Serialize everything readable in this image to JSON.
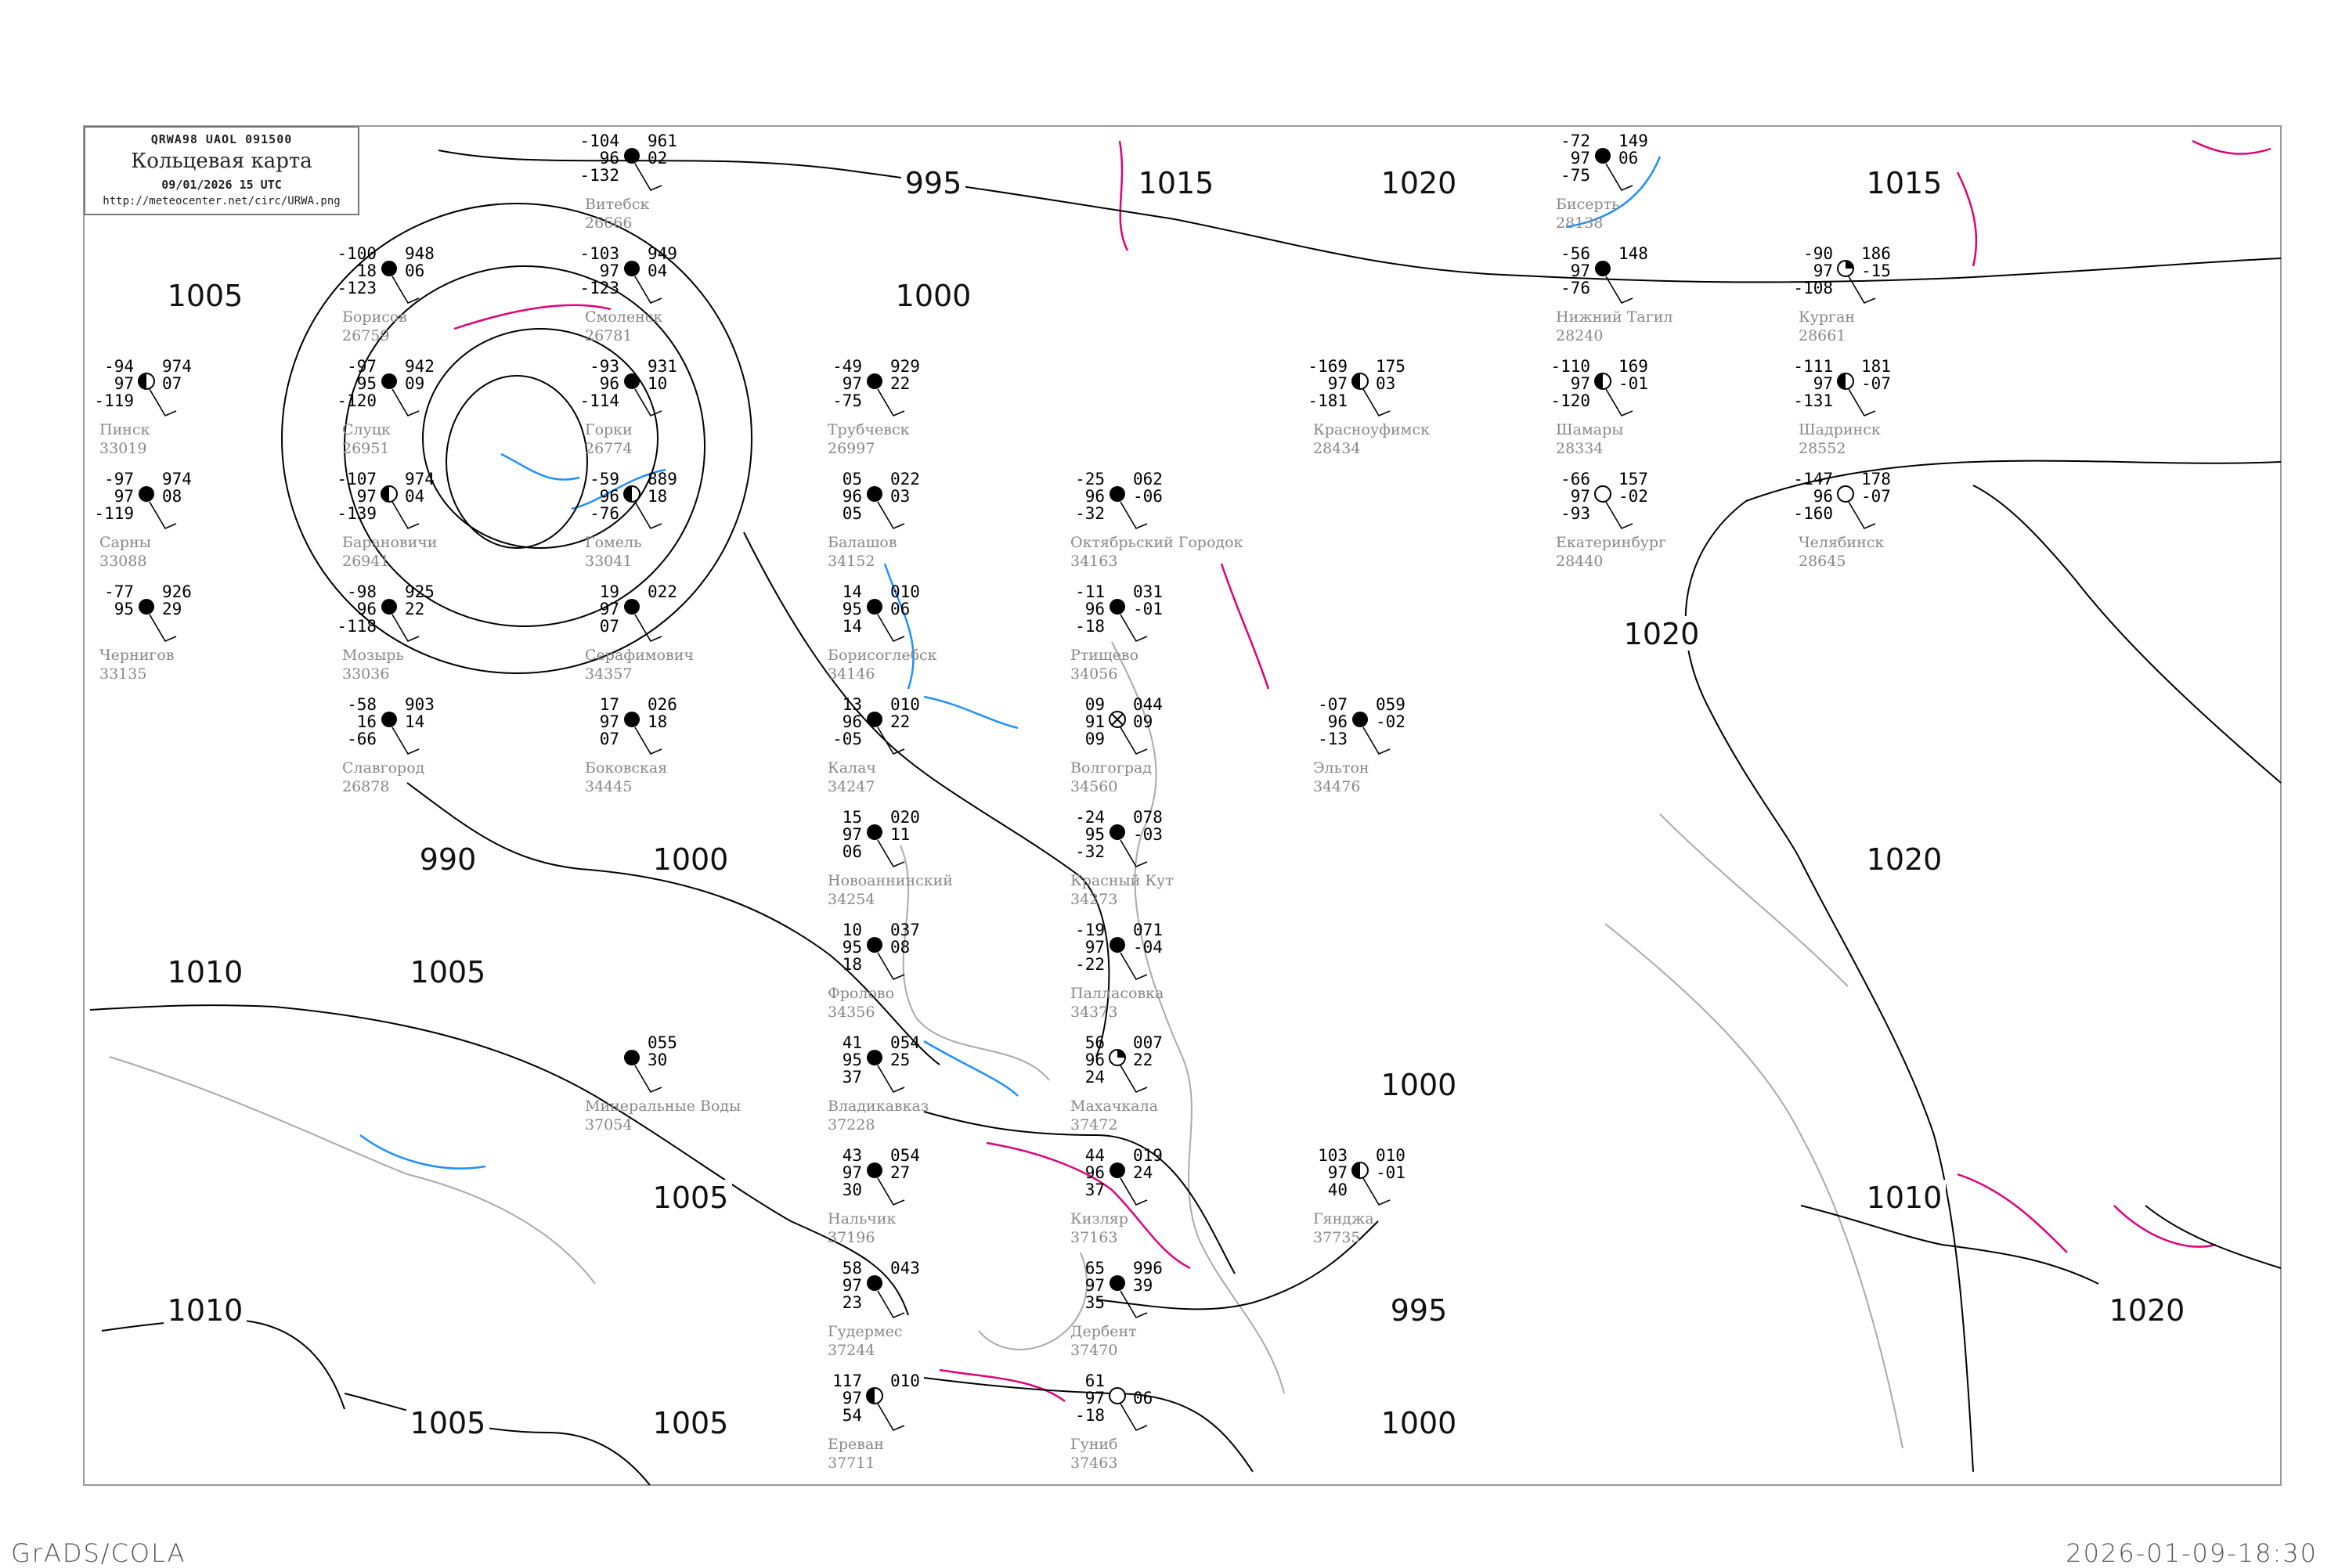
{
  "header": {
    "code_line": "QRWA98   UAOL   091500",
    "title": "Кольцевая карта",
    "datetime": "09/01/2026 15 UTC",
    "url": "http://meteocenter.net/circ/URWA.png"
  },
  "footer": {
    "left": "GrADS/COLA",
    "right": "2026-01-09-18:30"
  },
  "colors": {
    "isobar": "#000000",
    "front_pink": "#e0007a",
    "river_blue": "#1e90ff",
    "coast_gray": "#aaaaaa",
    "precip_blue": "#3399ff",
    "precip_green": "#00c030",
    "precip_yellow": "#ffff80"
  },
  "isobar_labels": [
    "1005",
    "1000",
    "995",
    "990",
    "1015",
    "1015",
    "1020",
    "1020",
    "1000",
    "1005",
    "1010",
    "1005",
    "1000",
    "995",
    "1000",
    "1005",
    "1005",
    "1010",
    "1010",
    "1020",
    "1020"
  ],
  "stations": [
    {
      "name": "Борисоглебск",
      "id": "34146",
      "temp": "14",
      "dew": "14",
      "pressure": "010",
      "vis": "95",
      "tend": "06",
      "cloud": "full"
    },
    {
      "name": "Балашов",
      "id": "34152",
      "temp": "05",
      "dew": "05",
      "pressure": "022",
      "vis": "96",
      "tend": "03",
      "cloud": "full"
    },
    {
      "name": "Ртищево",
      "id": "34056",
      "temp": "-11",
      "dew": "-18",
      "pressure": "031",
      "vis": "96",
      "tend": "-01",
      "cloud": "full"
    },
    {
      "name": "Калач",
      "id": "34247",
      "temp": "13",
      "dew": "-05",
      "pressure": "010",
      "vis": "96",
      "tend": "22",
      "cloud": "full"
    },
    {
      "name": "Новоаннинский",
      "id": "34254",
      "temp": "15",
      "dew": "06",
      "pressure": "020",
      "vis": "97",
      "tend": "11",
      "cloud": "full"
    },
    {
      "name": "Волгоград",
      "id": "34560",
      "temp": "09",
      "dew": "09",
      "pressure": "044",
      "vis": "91",
      "tend": "09",
      "cloud": "obscured"
    },
    {
      "name": "Октябрьский Городок",
      "id": "34163",
      "temp": "-25",
      "dew": "-32",
      "pressure": "062",
      "vis": "96",
      "tend": "-06",
      "cloud": "full"
    },
    {
      "name": "Красный Кут",
      "id": "34273",
      "temp": "-24",
      "dew": "-32",
      "pressure": "078",
      "vis": "95",
      "tend": "-03",
      "cloud": "full"
    },
    {
      "name": "Палласовка",
      "id": "34373",
      "temp": "-19",
      "dew": "-22",
      "pressure": "071",
      "vis": "97",
      "tend": "-04",
      "cloud": "full"
    },
    {
      "name": "Эльтон",
      "id": "34476",
      "temp": "-07",
      "dew": "-13",
      "pressure": "059",
      "vis": "96",
      "tend": "-02",
      "cloud": "full"
    },
    {
      "name": "Фролово",
      "id": "34356",
      "temp": "10",
      "dew": "18",
      "pressure": "037",
      "vis": "95",
      "tend": "08",
      "cloud": "full"
    },
    {
      "name": "Боковская",
      "id": "34445",
      "temp": "17",
      "dew": "07",
      "pressure": "026",
      "vis": "97",
      "tend": "18",
      "cloud": "full"
    },
    {
      "name": "Серафимович",
      "id": "34357",
      "temp": "19",
      "dew": "07",
      "pressure": "022",
      "vis": "97",
      "tend": "",
      "cloud": "full"
    },
    {
      "name": "Нижний Тагил",
      "id": "28240",
      "temp": "-56",
      "dew": "-76",
      "pressure": "148",
      "vis": "97",
      "tend": "",
      "cloud": "full"
    },
    {
      "name": "Бисерть",
      "id": "28138",
      "temp": "-72",
      "dew": "-75",
      "pressure": "149",
      "vis": "97",
      "tend": "06",
      "cloud": "full"
    },
    {
      "name": "Шамары",
      "id": "28334",
      "temp": "-110",
      "dew": "-120",
      "pressure": "169",
      "vis": "97",
      "tend": "-01",
      "cloud": "half"
    },
    {
      "name": "Екатеринбург",
      "id": "28440",
      "temp": "-66",
      "dew": "-93",
      "pressure": "157",
      "vis": "97",
      "tend": "-02",
      "cloud": "clear"
    },
    {
      "name": "Красноуфимск",
      "id": "28434",
      "temp": "-169",
      "dew": "-181",
      "pressure": "175",
      "vis": "97",
      "tend": "03",
      "cloud": "half"
    },
    {
      "name": "Шадринск",
      "id": "28552",
      "temp": "-111",
      "dew": "-131",
      "pressure": "181",
      "vis": "97",
      "tend": "-07",
      "cloud": "half"
    },
    {
      "name": "Курган",
      "id": "28661",
      "temp": "-90",
      "dew": "-108",
      "pressure": "186",
      "vis": "97",
      "tend": "-15",
      "cloud": "quarter"
    },
    {
      "name": "Челябинск",
      "id": "28645",
      "temp": "-147",
      "dew": "-160",
      "pressure": "178",
      "vis": "96",
      "tend": "-07",
      "cloud": "clear"
    },
    {
      "name": "Слуцк",
      "id": "26951",
      "temp": "-97",
      "dew": "-120",
      "pressure": "942",
      "vis": "95",
      "tend": "09",
      "cloud": "full"
    },
    {
      "name": "Борисов",
      "id": "26759",
      "temp": "-100",
      "dew": "-123",
      "pressure": "948",
      "vis": "18",
      "tend": "06",
      "cloud": "full"
    },
    {
      "name": "Смоленск",
      "id": "26781",
      "temp": "-103",
      "dew": "-123",
      "pressure": "949",
      "vis": "97",
      "tend": "04",
      "cloud": "full"
    },
    {
      "name": "Горки",
      "id": "26774",
      "temp": "-93",
      "dew": "-114",
      "pressure": "931",
      "vis": "96",
      "tend": "10",
      "cloud": "full"
    },
    {
      "name": "Витебск",
      "id": "26666",
      "temp": "-104",
      "dew": "-132",
      "pressure": "961",
      "vis": "96",
      "tend": "02",
      "cloud": "full"
    },
    {
      "name": "Барановичи",
      "id": "26941",
      "temp": "-107",
      "dew": "-139",
      "pressure": "974",
      "vis": "97",
      "tend": "04",
      "cloud": "half"
    },
    {
      "name": "Пинск",
      "id": "33019",
      "temp": "-94",
      "dew": "-119",
      "pressure": "974",
      "vis": "97",
      "tend": "07",
      "cloud": "half"
    },
    {
      "name": "Сарны",
      "id": "33088",
      "temp": "-97",
      "dew": "-119",
      "pressure": "974",
      "vis": "97",
      "tend": "08",
      "cloud": "full"
    },
    {
      "name": "Мозырь",
      "id": "33036",
      "temp": "-98",
      "dew": "-118",
      "pressure": "925",
      "vis": "96",
      "tend": "22",
      "cloud": "full"
    },
    {
      "name": "Гомель",
      "id": "33041",
      "temp": "-59",
      "dew": "-76",
      "pressure": "889",
      "vis": "96",
      "tend": "18",
      "cloud": "half"
    },
    {
      "name": "Славгород",
      "id": "26878",
      "temp": "-58",
      "dew": "-66",
      "pressure": "903",
      "vis": "16",
      "tend": "14",
      "cloud": "full"
    },
    {
      "name": "Чернигов",
      "id": "33135",
      "temp": "-77",
      "dew": "",
      "pressure": "926",
      "vis": "95",
      "tend": "29",
      "cloud": "full"
    },
    {
      "name": "Трубчевск",
      "id": "26997",
      "temp": "-49",
      "dew": "-75",
      "pressure": "929",
      "vis": "97",
      "tend": "22",
      "cloud": "full"
    },
    {
      "name": "Владикавказ",
      "id": "37228",
      "temp": "41",
      "dew": "37",
      "pressure": "054",
      "vis": "95",
      "tend": "25",
      "cloud": "full"
    },
    {
      "name": "Нальчик",
      "id": "37196",
      "temp": "43",
      "dew": "30",
      "pressure": "054",
      "vis": "97",
      "tend": "27",
      "cloud": "full"
    },
    {
      "name": "Махачкала",
      "id": "37472",
      "temp": "56",
      "dew": "24",
      "pressure": "007",
      "vis": "96",
      "tend": "22",
      "cloud": "quarter"
    },
    {
      "name": "Кизляр",
      "id": "37163",
      "temp": "44",
      "dew": "37",
      "pressure": "019",
      "vis": "96",
      "tend": "24",
      "cloud": "full"
    },
    {
      "name": "Дербент",
      "id": "37470",
      "temp": "65",
      "dew": "35",
      "pressure": "996",
      "vis": "97",
      "tend": "39",
      "cloud": "full"
    },
    {
      "name": "Гудермес",
      "id": "37244",
      "temp": "58",
      "dew": "23",
      "pressure": "043",
      "vis": "97",
      "tend": "",
      "cloud": "full"
    },
    {
      "name": "Гуниб",
      "id": "37463",
      "temp": "61",
      "dew": "-18",
      "pressure": "",
      "vis": "97",
      "tend": "06",
      "cloud": "clear"
    },
    {
      "name": "Ереван",
      "id": "37711",
      "temp": "117",
      "dew": "54",
      "pressure": "010",
      "vis": "97",
      "tend": "",
      "cloud": "half"
    },
    {
      "name": "Гянджа",
      "id": "37735",
      "temp": "103",
      "dew": "40",
      "pressure": "010",
      "vis": "97",
      "tend": "-01",
      "cloud": "half"
    },
    {
      "name": "Минеральные Воды",
      "id": "37054",
      "temp": "",
      "dew": "",
      "pressure": "055",
      "vis": "",
      "tend": "30",
      "cloud": "full"
    }
  ]
}
